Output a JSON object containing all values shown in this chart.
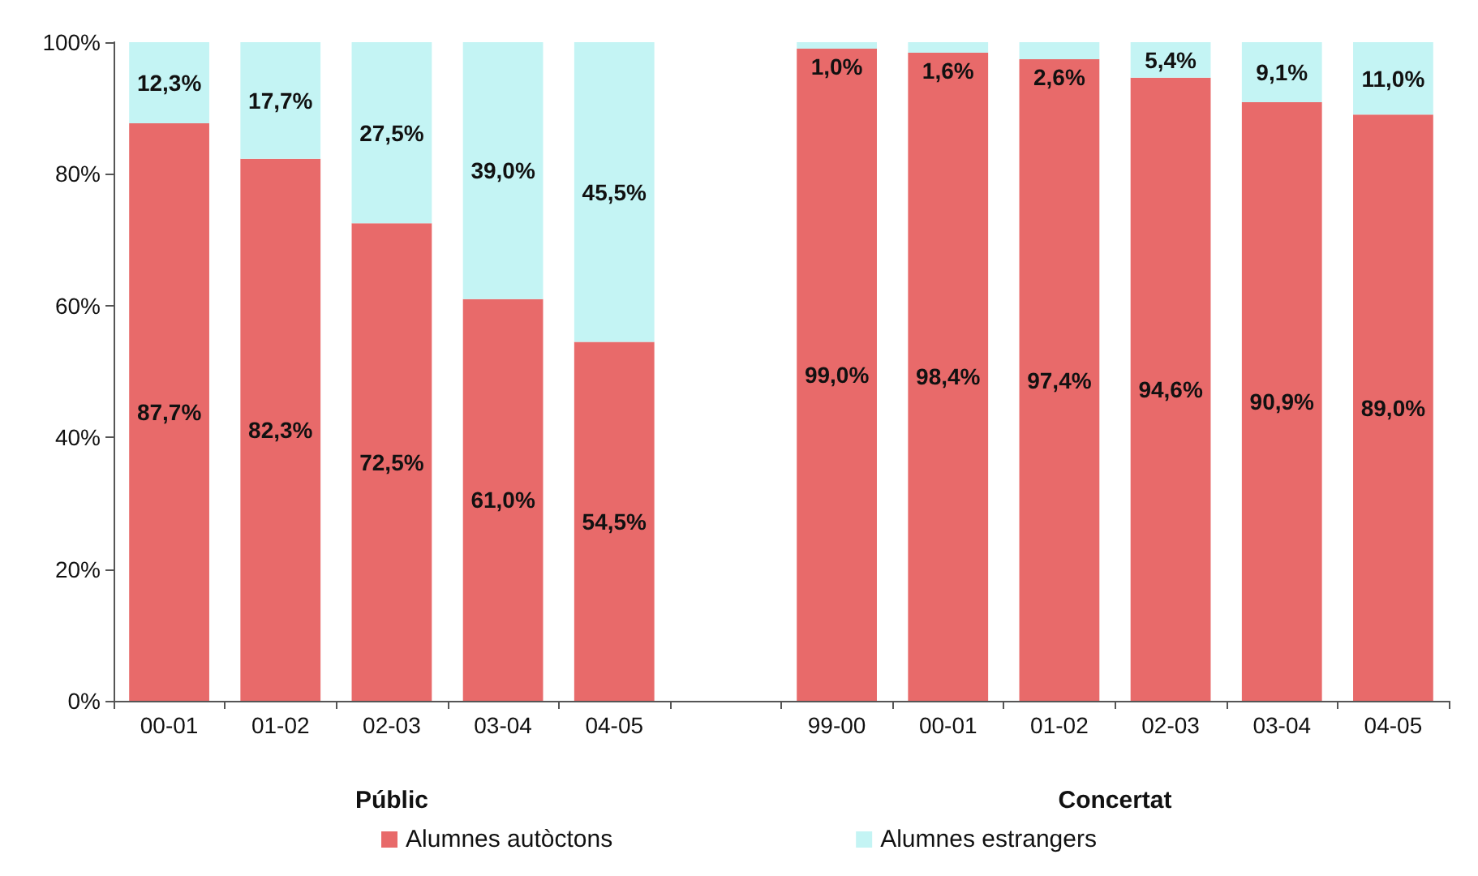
{
  "chart_data": {
    "type": "bar",
    "stacked": true,
    "categories": [
      "00-01",
      "01-02",
      "02-03",
      "03-04",
      "04-05",
      null,
      "99-00",
      "00-01",
      "01-02",
      "02-03",
      "03-04",
      "04-05"
    ],
    "series": [
      {
        "name": "Alumnes autòctons",
        "color": "#e86a6a",
        "values": [
          87.7,
          82.3,
          72.5,
          61.0,
          54.5,
          null,
          99.0,
          98.4,
          97.4,
          94.6,
          90.9,
          89.0
        ],
        "value_labels": [
          "87,7%",
          "82,3%",
          "72,5%",
          "61,0%",
          "54,5%",
          null,
          "99,0%",
          "98,4%",
          "97,4%",
          "94,6%",
          "90,9%",
          "89,0%"
        ]
      },
      {
        "name": "Alumnes estrangers",
        "color": "#c4f4f4",
        "values": [
          12.3,
          17.7,
          27.5,
          39.0,
          45.5,
          null,
          1.0,
          1.6,
          2.6,
          5.4,
          9.1,
          11.0
        ],
        "value_labels": [
          "12,3%",
          "17,7%",
          "27,5%",
          "39,0%",
          "45,5%",
          null,
          "1,0%",
          "1,6%",
          "2,6%",
          "5,4%",
          "9,1%",
          "11,0%"
        ]
      }
    ],
    "ylim": [
      0,
      100
    ],
    "yticks": [
      {
        "value": 0,
        "label": "0%"
      },
      {
        "value": 20,
        "label": "20%"
      },
      {
        "value": 40,
        "label": "40%"
      },
      {
        "value": 60,
        "label": "60%"
      },
      {
        "value": 80,
        "label": "80%"
      },
      {
        "value": 100,
        "label": "100%"
      }
    ],
    "annotations": [
      "Públic",
      "Concertat"
    ],
    "legend": "bottom"
  }
}
